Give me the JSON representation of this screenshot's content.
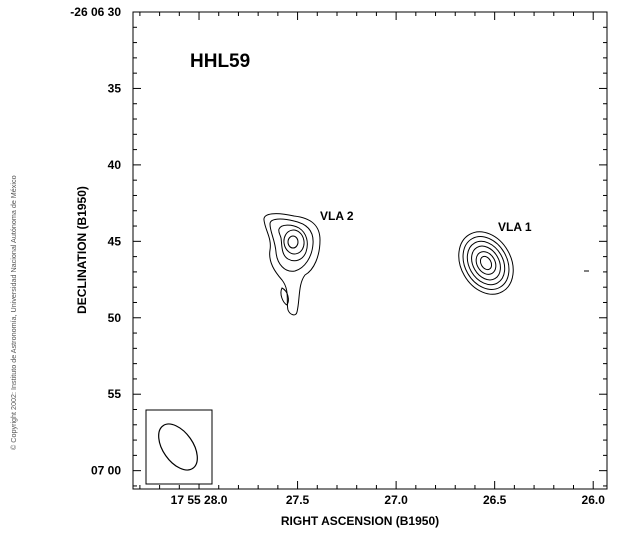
{
  "copyright": "© Copyright 2002: Instituto de Astronomía, Universidad Nacional Autónoma de México",
  "chart_data": {
    "type": "contour",
    "title": "HHL59",
    "xlabel": "RIGHT ASCENSION (B1950)",
    "ylabel": "DECLINATION (B1950)",
    "x_ticks": [
      {
        "label": "17 55 28.0",
        "value": 28.0
      },
      {
        "label": "27.5",
        "value": 27.5
      },
      {
        "label": "27.0",
        "value": 27.0
      },
      {
        "label": "26.5",
        "value": 26.5
      },
      {
        "label": "26.0",
        "value": 26.0
      }
    ],
    "y_ticks": [
      {
        "label": "-26 06 30",
        "value": 30
      },
      {
        "label": "35",
        "value": 35
      },
      {
        "label": "40",
        "value": 40
      },
      {
        "label": "45",
        "value": 45
      },
      {
        "label": "50",
        "value": 50
      },
      {
        "label": "55",
        "value": 55
      },
      {
        "label": "07 00",
        "value": 60
      }
    ],
    "xlim_seconds": [
      28.335,
      25.93
    ],
    "ylim_arcsec": [
      30,
      61.2
    ],
    "sources": [
      {
        "name": "VLA 1",
        "ra_s": 26.47,
        "dec_arcsec": 45.5
      },
      {
        "name": "VLA 2",
        "ra_s": 27.5,
        "dec_arcsec": 44.8
      }
    ],
    "beam": {
      "major_arcsec": 3.4,
      "minor_arcsec": 2.0,
      "pa_deg": 35
    }
  }
}
